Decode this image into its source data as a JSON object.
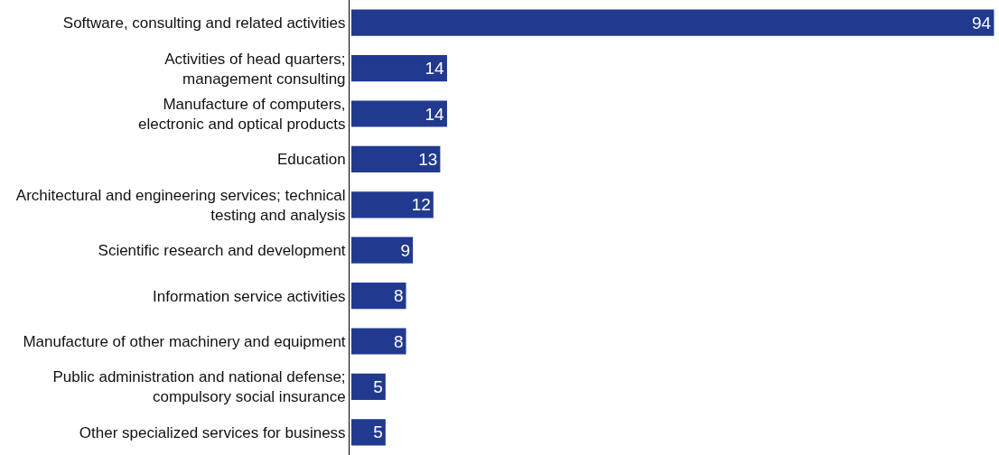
{
  "chart_data": {
    "type": "bar",
    "orientation": "horizontal",
    "categories": [
      "Software, consulting and related activities",
      "Activities of head quarters;\nmanagement consulting",
      "Manufacture of computers,\nelectronic and optical products",
      "Education",
      "Architectural and engineering services; technical\ntesting and analysis",
      "Scientific research and development",
      "Information service activities",
      "Manufacture of other machinery and equipment",
      "Public administration and national defense;\ncompulsory social insurance",
      "Other specialized services for business"
    ],
    "values": [
      94,
      14,
      14,
      13,
      12,
      9,
      8,
      8,
      5,
      5
    ],
    "color": "#213a8f",
    "data_labels": true
  }
}
